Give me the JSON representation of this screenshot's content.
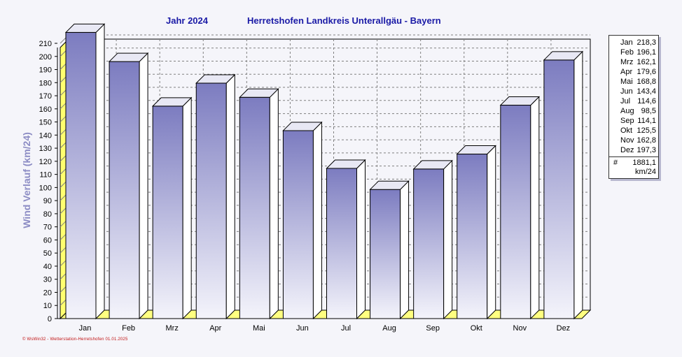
{
  "title": {
    "year": "Jahr  2024",
    "place": "Herretshofen Landkreis Unterallgäu - Bayern"
  },
  "chart_data": {
    "type": "bar",
    "categories": [
      "Jan",
      "Feb",
      "Mrz",
      "Apr",
      "Mai",
      "Jun",
      "Jul",
      "Aug",
      "Sep",
      "Okt",
      "Nov",
      "Dez"
    ],
    "values": [
      218.3,
      196.1,
      162.1,
      179.6,
      168.8,
      143.4,
      114.6,
      98.5,
      114.1,
      125.5,
      162.8,
      197.3
    ],
    "ylabel": "Wind Verlauf  (km/24)",
    "ylim": [
      0,
      210
    ],
    "yticks": [
      0,
      10,
      20,
      30,
      40,
      50,
      60,
      70,
      80,
      90,
      100,
      110,
      120,
      130,
      140,
      150,
      160,
      170,
      180,
      190,
      200,
      210
    ],
    "grid": true,
    "legend_position": "right"
  },
  "legend": {
    "rows": [
      {
        "label": "Jan",
        "value": "218,3"
      },
      {
        "label": "Feb",
        "value": "196,1"
      },
      {
        "label": "Mrz",
        "value": "162,1"
      },
      {
        "label": "Apr",
        "value": "179,6"
      },
      {
        "label": "Mai",
        "value": "168,8"
      },
      {
        "label": "Jun",
        "value": "143,4"
      },
      {
        "label": "Jul",
        "value": "114,6"
      },
      {
        "label": "Aug",
        "value": "98,5"
      },
      {
        "label": "Sep",
        "value": "114,1"
      },
      {
        "label": "Okt",
        "value": "125,5"
      },
      {
        "label": "Nov",
        "value": "162,8"
      },
      {
        "label": "Dez",
        "value": "197,3"
      }
    ],
    "total_symbol": "#",
    "total_value": "1881,1",
    "total_unit": "km/24"
  },
  "footer": "© WsWin32  -  Wetterstation-Herretshofen  01.01.2025",
  "colors": {
    "bar_top": "#7c7cc0",
    "bar_bottom": "#f4f4fb",
    "floor": "#ffff80",
    "title": "#1a1aa6"
  }
}
